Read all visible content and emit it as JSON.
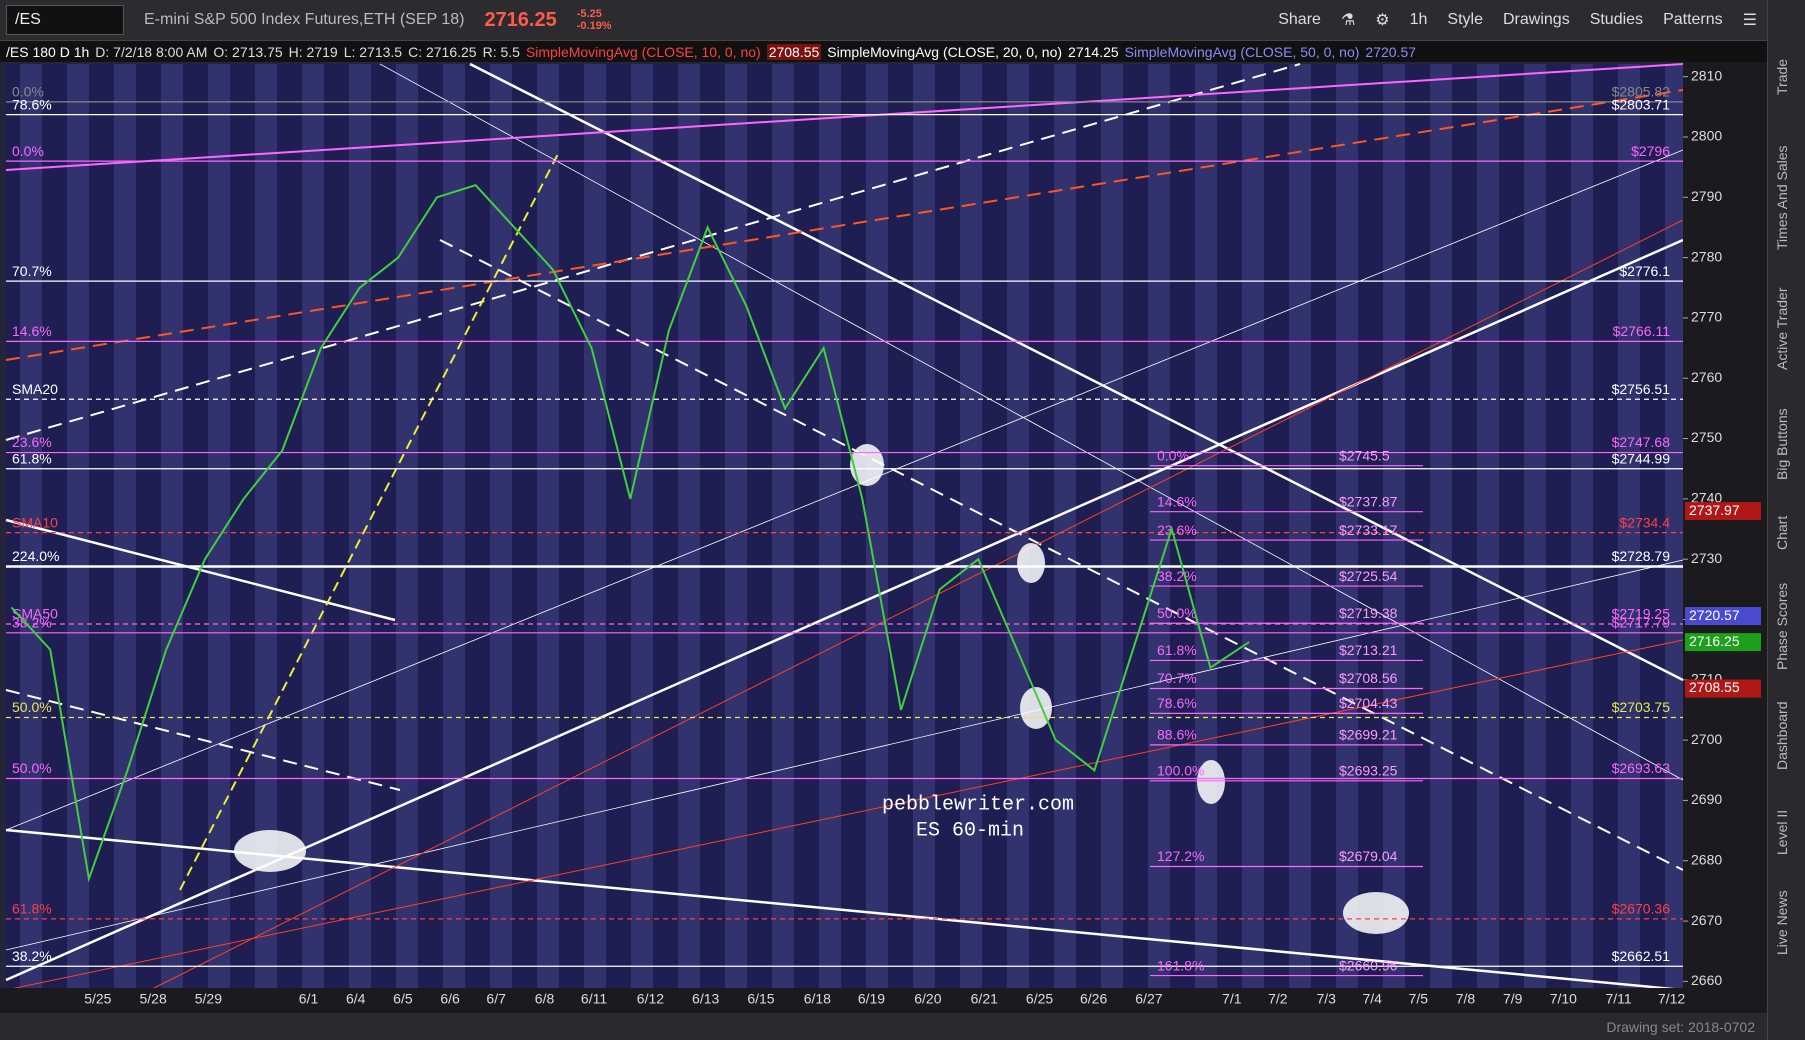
{
  "toolbar": {
    "symbol": "/ES",
    "description": "E-mini S&P 500 Index Futures,ETH (SEP 18)",
    "last": "2716.25",
    "change": "-5.25",
    "change_pct": "-0.19%",
    "buttons": [
      "Share",
      "1h",
      "Style",
      "Drawings",
      "Studies",
      "Patterns"
    ]
  },
  "info_bar": {
    "chart": "/ES 180 D 1h",
    "date": "D: 7/2/18 8:00 AM",
    "open": "O: 2713.75",
    "high": "H: 2719",
    "low": "L: 2713.5",
    "close": "C: 2716.25",
    "range": "R: 5.5",
    "sma10": "SimpleMovingAvg (CLOSE, 10, 0, no)",
    "sma10_value": "2708.55",
    "sma20": "SimpleMovingAvg (CLOSE, 20, 0, no)",
    "sma20_value": "2714.25",
    "sma50": "SimpleMovingAvg (CLOSE, 50, 0, no)",
    "sma50_value": "2720.57"
  },
  "sidebar": [
    "Trade",
    "Times And Sales",
    "Active Trader",
    "Big Buttons",
    "Chart",
    "Phase Scores",
    "Dashboard",
    "Level II",
    "Live News"
  ],
  "chart": {
    "ylim": [
      2658.9,
      2812.1
    ],
    "yticks": [
      2660,
      2670,
      2680,
      2690,
      2700,
      2710,
      2720,
      2730,
      2740,
      2750,
      2760,
      2770,
      2780,
      2790,
      2800,
      2810
    ],
    "dates": [
      "5/25",
      "5/28",
      "5/29",
      "6/1",
      "6/4",
      "6/5",
      "6/6",
      "6/7",
      "6/8",
      "6/11",
      "6/12",
      "6/13",
      "6/15",
      "6/18",
      "6/19",
      "6/20",
      "6/21",
      "6/25",
      "6/26",
      "6/27",
      "7/1",
      "7/2",
      "7/3",
      "7/4",
      "7/5",
      "7/8",
      "7/9",
      "7/10",
      "7/11",
      "7/12"
    ],
    "price": {
      "color": "#3fcf3f",
      "values": [
        2722,
        2715,
        2677,
        2695,
        2715,
        2730,
        2740,
        2748,
        2765,
        2775,
        2780,
        2790,
        2792,
        2785,
        2778,
        2765,
        2740,
        2768,
        2785,
        2772,
        2755,
        2765,
        2740,
        2705,
        2725,
        2730,
        2715,
        2700,
        2695,
        2715,
        2735,
        2712,
        2716.25
      ]
    },
    "levels": [
      {
        "value": 2805.82,
        "label": "$2805.82",
        "tag": "0.0%",
        "color": "#888888",
        "dash": false
      },
      {
        "value": 2803.71,
        "label": "$2803.71",
        "tag": "78.6%",
        "color": "#ffffff",
        "dash": false
      },
      {
        "value": 2796,
        "label": "$2796",
        "tag": "0.0%",
        "color": "#ff66ff",
        "dash": false
      },
      {
        "value": 2776.1,
        "label": "$2776.1",
        "tag": "70.7%",
        "color": "#ffffff",
        "dash": false
      },
      {
        "value": 2766.11,
        "label": "$2766.11",
        "tag": "14.6%",
        "color": "#ff66ff",
        "dash": false
      },
      {
        "value": 2756.51,
        "label": "$2756.51",
        "tag": "SMA20",
        "color": "#ffffff",
        "dash": true
      },
      {
        "value": 2747.68,
        "label": "$2747.68",
        "tag": "23.6%",
        "color": "#ff66ff",
        "dash": false
      },
      {
        "value": 2744.99,
        "label": "$2744.99",
        "tag": "61.8%",
        "color": "#ffffff",
        "dash": false
      },
      {
        "value": 2734.4,
        "label": "$2734.4",
        "tag": "SMA10",
        "color": "#ff4040",
        "dash": true
      },
      {
        "value": 2728.79,
        "label": "$2728.79",
        "tag": "224.0%",
        "color": "#ffffff",
        "dash": false
      },
      {
        "value": 2719.25,
        "label": "$2719.25",
        "tag": "SMA50",
        "color": "#ff66ff",
        "dash": true
      },
      {
        "value": 2717.79,
        "label": "$2717.79",
        "tag": "38.2%",
        "color": "#ff66ff",
        "dash": false
      },
      {
        "value": 2703.75,
        "label": "$2703.75",
        "tag": "50.0%",
        "color": "#e8e84a",
        "dash": true
      },
      {
        "value": 2693.63,
        "label": "$2693.63",
        "tag": "50.0%",
        "color": "#ff66ff",
        "dash": false
      },
      {
        "value": 2670.36,
        "label": "$2670.36",
        "tag": "61.8%",
        "color": "#ff4040",
        "dash": true
      },
      {
        "value": 2662.51,
        "label": "$2662.51",
        "tag": "38.2%",
        "color": "#ffffff",
        "dash": false
      }
    ],
    "fib": [
      {
        "tag": "0.0%",
        "value": 2745.5,
        "label": "$2745.5"
      },
      {
        "tag": "14.6%",
        "value": 2737.87,
        "label": "$2737.87"
      },
      {
        "tag": "23.6%",
        "value": 2733.17,
        "label": "$2733.17"
      },
      {
        "tag": "38.2%",
        "value": 2725.54,
        "label": "$2725.54"
      },
      {
        "tag": "50.0%",
        "value": 2719.38,
        "label": "$2719.38"
      },
      {
        "tag": "61.8%",
        "value": 2713.21,
        "label": "$2713.21"
      },
      {
        "tag": "70.7%",
        "value": 2708.56,
        "label": "$2708.56"
      },
      {
        "tag": "78.6%",
        "value": 2704.43,
        "label": "$2704.43"
      },
      {
        "tag": "88.6%",
        "value": 2699.21,
        "label": "$2699.21"
      },
      {
        "tag": "100.0%",
        "value": 2693.25,
        "label": "$2693.25"
      },
      {
        "tag": "127.2%",
        "value": 2679.04,
        "label": "$2679.04"
      },
      {
        "tag": "161.8%",
        "value": 2660.96,
        "label": "$2660.96"
      }
    ],
    "price_tags": [
      {
        "value": 2737.97,
        "color": "#b01818"
      },
      {
        "value": 2720.57,
        "color": "#4a4ad0"
      },
      {
        "value": 2716.25,
        "color": "#1aa01a"
      },
      {
        "value": 2708.55,
        "color": "#b01818"
      }
    ],
    "watermark": [
      "pebblewriter.com",
      "ES 60-min"
    ]
  },
  "footer": "Drawing set: 2018-0702"
}
